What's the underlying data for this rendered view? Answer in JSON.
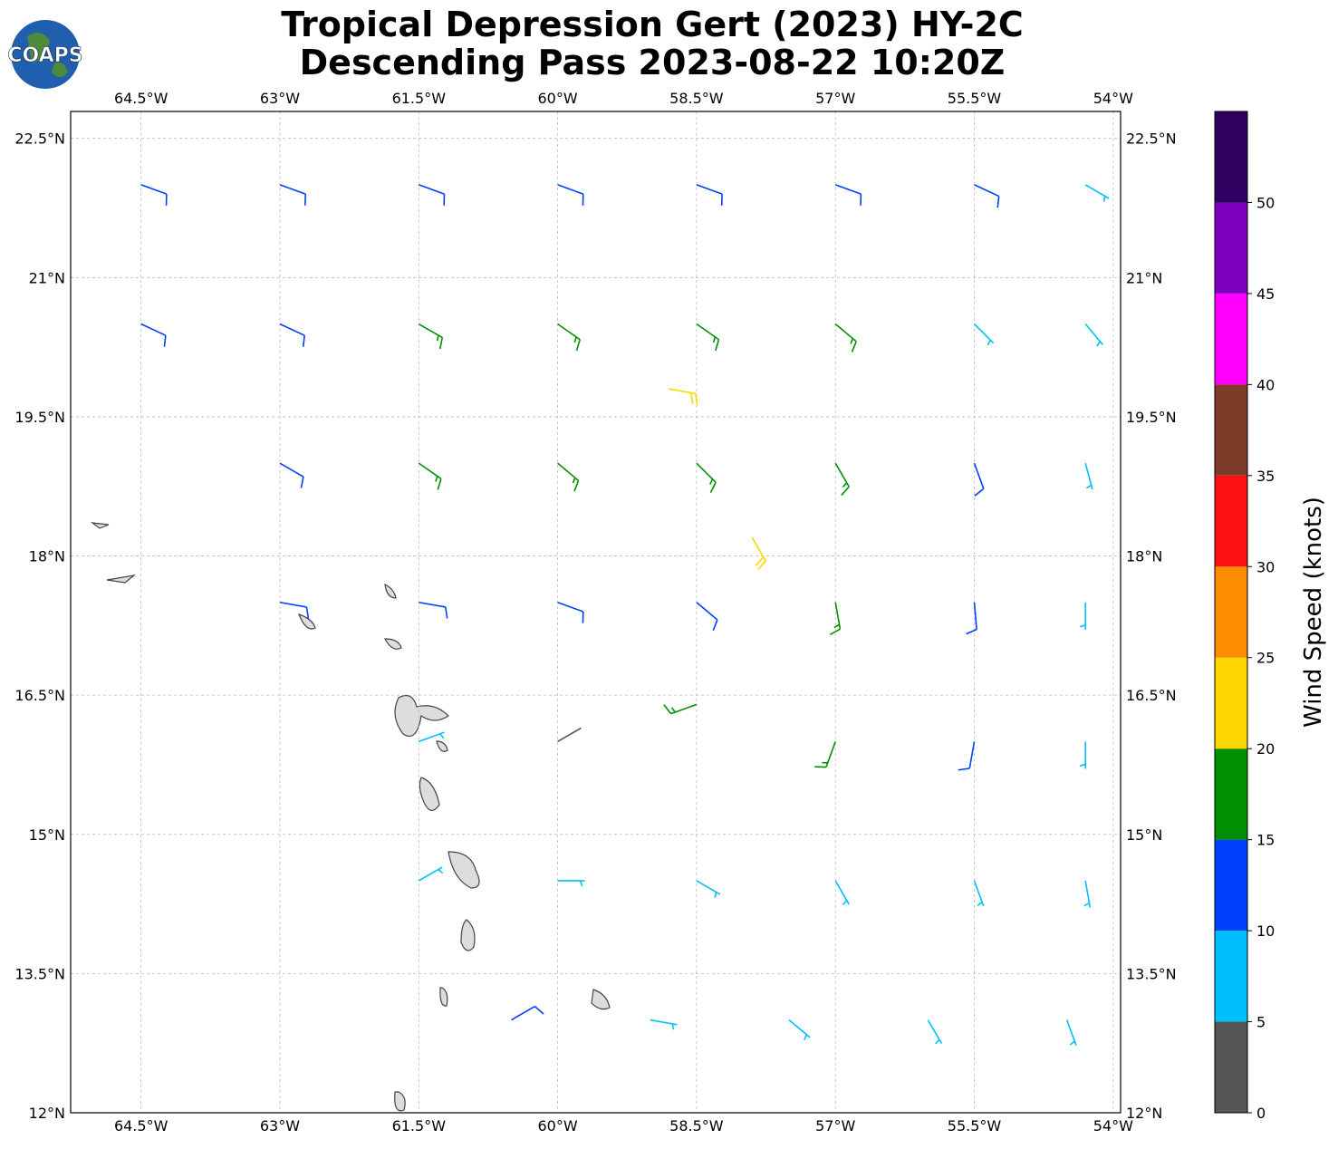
{
  "map": {
    "title_lines": [
      "Tropical Depression Gert (2023) HY-2C",
      "Descending Pass 2023-08-22 10:20Z"
    ],
    "logo": "COAPS",
    "xlim": [
      -65.26,
      -53.92
    ],
    "ylim": [
      12,
      22.79
    ],
    "lon_ticks": [
      {
        "value": -64.5,
        "label": "64.5°W"
      },
      {
        "value": -63,
        "label": "63°W"
      },
      {
        "value": -61.5,
        "label": "61.5°W"
      },
      {
        "value": -60,
        "label": "60°W"
      },
      {
        "value": -58.5,
        "label": "58.5°W"
      },
      {
        "value": -57,
        "label": "57°W"
      },
      {
        "value": -55.5,
        "label": "55.5°W"
      },
      {
        "value": -54,
        "label": "54°W"
      }
    ],
    "lat_ticks": [
      {
        "value": 12,
        "label": "12°N"
      },
      {
        "value": 13.5,
        "label": "13.5°N"
      },
      {
        "value": 15,
        "label": "15°N"
      },
      {
        "value": 16.5,
        "label": "16.5°N"
      },
      {
        "value": 18,
        "label": "18°N"
      },
      {
        "value": 19.5,
        "label": "19.5°N"
      },
      {
        "value": 21,
        "label": "21°N"
      },
      {
        "value": 22.5,
        "label": "22.5°N"
      }
    ],
    "grid": true,
    "colorbar": {
      "label": "Wind Speed (knots)",
      "lim": [
        0,
        55
      ],
      "ticks": [
        0,
        5,
        10,
        15,
        20,
        25,
        30,
        35,
        40,
        45,
        50
      ],
      "colors": [
        "#555555",
        "#00bfff",
        "#0040ff",
        "#009000",
        "#ffd700",
        "#ff8c00",
        "#ff1010",
        "#7f3b2a",
        "#ff00ff",
        "#8000c0",
        "#2e0060"
      ]
    },
    "barbs": [
      {
        "lon": -64.5,
        "lat": 22,
        "speed": 11,
        "dir": 110
      },
      {
        "lon": -63,
        "lat": 22,
        "speed": 12,
        "dir": 110
      },
      {
        "lon": -61.5,
        "lat": 22,
        "speed": 12,
        "dir": 110
      },
      {
        "lon": -60,
        "lat": 22,
        "speed": 14,
        "dir": 110
      },
      {
        "lon": -58.5,
        "lat": 22,
        "speed": 13,
        "dir": 110
      },
      {
        "lon": -57,
        "lat": 22,
        "speed": 12,
        "dir": 110
      },
      {
        "lon": -55.5,
        "lat": 22,
        "speed": 11,
        "dir": 115
      },
      {
        "lon": -54.3,
        "lat": 22,
        "speed": 8,
        "dir": 120
      },
      {
        "lon": -64.5,
        "lat": 20.5,
        "speed": 12,
        "dir": 115
      },
      {
        "lon": -63,
        "lat": 20.5,
        "speed": 14,
        "dir": 115
      },
      {
        "lon": -61.5,
        "lat": 20.5,
        "speed": 16,
        "dir": 120
      },
      {
        "lon": -60,
        "lat": 20.5,
        "speed": 17,
        "dir": 125
      },
      {
        "lon": -58.5,
        "lat": 20.5,
        "speed": 17,
        "dir": 125
      },
      {
        "lon": -57,
        "lat": 20.5,
        "speed": 16,
        "dir": 130
      },
      {
        "lon": -55.5,
        "lat": 20.5,
        "speed": 9,
        "dir": 135
      },
      {
        "lon": -54.3,
        "lat": 20.5,
        "speed": 8,
        "dir": 140
      },
      {
        "lon": -63,
        "lat": 19,
        "speed": 12,
        "dir": 120
      },
      {
        "lon": -61.5,
        "lat": 19,
        "speed": 16,
        "dir": 125
      },
      {
        "lon": -60,
        "lat": 19,
        "speed": 17,
        "dir": 130
      },
      {
        "lon": -58.5,
        "lat": 19,
        "speed": 17,
        "dir": 135
      },
      {
        "lon": -57,
        "lat": 19,
        "speed": 15,
        "dir": 150
      },
      {
        "lon": -55.5,
        "lat": 19,
        "speed": 12,
        "dir": 160
      },
      {
        "lon": -54.3,
        "lat": 19,
        "speed": 8,
        "dir": 165
      },
      {
        "lon": -63,
        "lat": 17.5,
        "speed": 12,
        "dir": 100
      },
      {
        "lon": -61.5,
        "lat": 17.5,
        "speed": 12,
        "dir": 100
      },
      {
        "lon": -60,
        "lat": 17.5,
        "speed": 14,
        "dir": 110
      },
      {
        "lon": -58.5,
        "lat": 17.5,
        "speed": 12,
        "dir": 130
      },
      {
        "lon": -57,
        "lat": 17.5,
        "speed": 15,
        "dir": 170
      },
      {
        "lon": -55.5,
        "lat": 17.5,
        "speed": 12,
        "dir": 175
      },
      {
        "lon": -54.3,
        "lat": 17.5,
        "speed": 9,
        "dir": 180
      },
      {
        "lon": -61.5,
        "lat": 16,
        "speed": 8,
        "dir": 70
      },
      {
        "lon": -60,
        "lat": 16,
        "speed": 4,
        "dir": 60
      },
      {
        "lon": -58.5,
        "lat": 16.4,
        "speed": 17,
        "dir": 250
      },
      {
        "lon": -57,
        "lat": 16,
        "speed": 15,
        "dir": 200
      },
      {
        "lon": -55.5,
        "lat": 16,
        "speed": 11,
        "dir": 190
      },
      {
        "lon": -54.3,
        "lat": 16,
        "speed": 8,
        "dir": 180
      },
      {
        "lon": -61.5,
        "lat": 14.5,
        "speed": 8,
        "dir": 60
      },
      {
        "lon": -60,
        "lat": 14.5,
        "speed": 8,
        "dir": 90
      },
      {
        "lon": -58.5,
        "lat": 14.5,
        "speed": 8,
        "dir": 120
      },
      {
        "lon": -57,
        "lat": 14.5,
        "speed": 8,
        "dir": 150
      },
      {
        "lon": -55.5,
        "lat": 14.5,
        "speed": 8,
        "dir": 160
      },
      {
        "lon": -54.3,
        "lat": 14.5,
        "speed": 8,
        "dir": 170
      },
      {
        "lon": -60.5,
        "lat": 13,
        "speed": 11,
        "dir": 60
      },
      {
        "lon": -59,
        "lat": 13,
        "speed": 9,
        "dir": 100
      },
      {
        "lon": -57.5,
        "lat": 13,
        "speed": 8,
        "dir": 130
      },
      {
        "lon": -56,
        "lat": 13,
        "speed": 8,
        "dir": 150
      },
      {
        "lon": -54.5,
        "lat": 13,
        "speed": 8,
        "dir": 160
      },
      {
        "lon": -58.8,
        "lat": 19.8,
        "speed": 21,
        "dir": 100
      },
      {
        "lon": -57.9,
        "lat": 18.2,
        "speed": 22,
        "dir": 150
      }
    ]
  }
}
